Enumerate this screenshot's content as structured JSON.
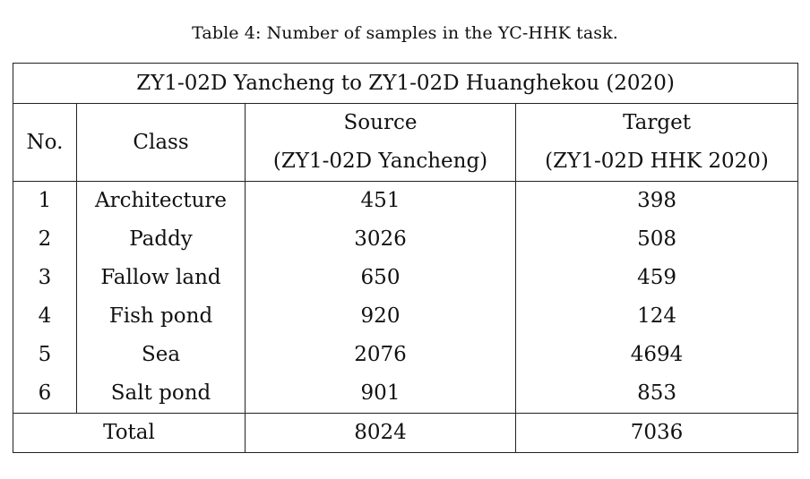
{
  "caption": "Table 4: Number of samples in the YC-HHK task.",
  "table": {
    "title": "ZY1-02D Yancheng to ZY1-02D Huanghekou (2020)",
    "headers": {
      "no": "No.",
      "class": "Class",
      "source_line1": "Source",
      "source_line2": "(ZY1-02D Yancheng)",
      "target_line1": "Target",
      "target_line2": "(ZY1-02D HHK 2020)"
    },
    "rows": [
      {
        "no": "1",
        "class": "Architecture",
        "source": "451",
        "target": "398"
      },
      {
        "no": "2",
        "class": "Paddy",
        "source": "3026",
        "target": "508"
      },
      {
        "no": "3",
        "class": "Fallow land",
        "source": "650",
        "target": "459"
      },
      {
        "no": "4",
        "class": "Fish pond",
        "source": "920",
        "target": "124"
      },
      {
        "no": "5",
        "class": "Sea",
        "source": "2076",
        "target": "4694"
      },
      {
        "no": "6",
        "class": "Salt pond",
        "source": "901",
        "target": "853"
      }
    ],
    "total": {
      "label": "Total",
      "source": "8024",
      "target": "7036"
    }
  }
}
